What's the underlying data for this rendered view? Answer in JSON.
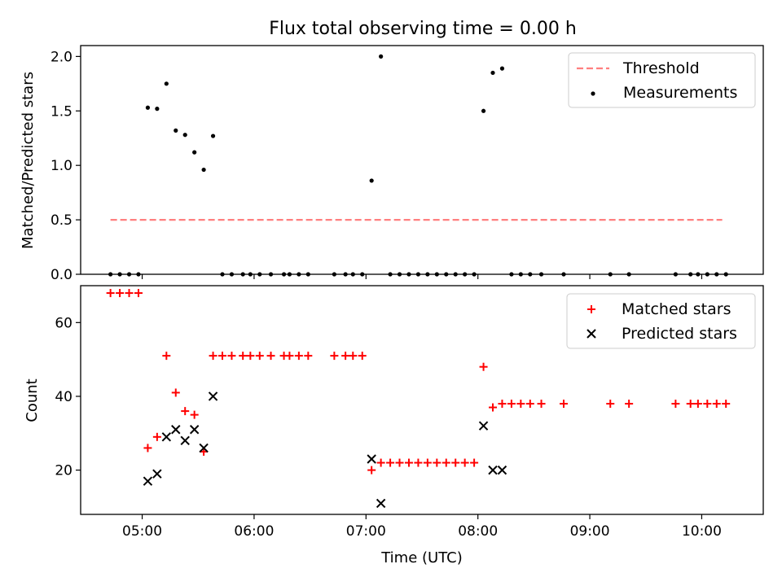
{
  "title": "Flux total observing time = 0.00 h",
  "colors": {
    "threshold": "#ff7f7f",
    "measurements": "#000000",
    "matched": "#ff0000",
    "predicted": "#000000"
  },
  "chart_data": [
    {
      "type": "scatter",
      "title": "Flux total observing time = 0.00 h",
      "ylabel": "Matched/Predicted stars",
      "xlabel": "",
      "xlim": [
        "04:27",
        "10:33"
      ],
      "ylim": [
        0,
        2.1
      ],
      "yticks": [
        0.0,
        0.5,
        1.0,
        1.5,
        2.0
      ],
      "ytick_labels": [
        "0.0",
        "0.5",
        "1.0",
        "1.5",
        "2.0"
      ],
      "legend_position": "top-right",
      "threshold": {
        "name": "Threshold",
        "y": 0.5,
        "x_start": "04:43",
        "x_end": "10:11",
        "style": "dashed"
      },
      "series": [
        {
          "name": "Measurements",
          "points": [
            [
              "04:43",
              0
            ],
            [
              "04:48",
              0
            ],
            [
              "04:53",
              0
            ],
            [
              "04:58",
              0
            ],
            [
              "05:03",
              1.53
            ],
            [
              "05:08",
              1.52
            ],
            [
              "05:13",
              1.75
            ],
            [
              "05:18",
              1.32
            ],
            [
              "05:23",
              1.28
            ],
            [
              "05:28",
              1.12
            ],
            [
              "05:33",
              0.96
            ],
            [
              "05:38",
              1.27
            ],
            [
              "05:43",
              0
            ],
            [
              "05:48",
              0
            ],
            [
              "05:54",
              0
            ],
            [
              "05:58",
              0
            ],
            [
              "06:03",
              0
            ],
            [
              "06:09",
              0
            ],
            [
              "06:16",
              0
            ],
            [
              "06:19",
              0
            ],
            [
              "06:24",
              0
            ],
            [
              "06:29",
              0
            ],
            [
              "06:43",
              0
            ],
            [
              "06:49",
              0
            ],
            [
              "06:53",
              0
            ],
            [
              "06:58",
              0
            ],
            [
              "07:03",
              0.86
            ],
            [
              "07:08",
              2.0
            ],
            [
              "07:13",
              0
            ],
            [
              "07:18",
              0
            ],
            [
              "07:23",
              0
            ],
            [
              "07:28",
              0
            ],
            [
              "07:33",
              0
            ],
            [
              "07:38",
              0
            ],
            [
              "07:43",
              0
            ],
            [
              "07:48",
              0
            ],
            [
              "07:53",
              0
            ],
            [
              "07:58",
              0
            ],
            [
              "08:03",
              1.5
            ],
            [
              "08:08",
              1.85
            ],
            [
              "08:13",
              1.89
            ],
            [
              "08:18",
              0
            ],
            [
              "08:23",
              0
            ],
            [
              "08:28",
              0
            ],
            [
              "08:34",
              0
            ],
            [
              "08:46",
              0
            ],
            [
              "09:11",
              0
            ],
            [
              "09:21",
              0
            ],
            [
              "09:46",
              0
            ],
            [
              "09:54",
              0
            ],
            [
              "09:58",
              0
            ],
            [
              "10:03",
              0
            ],
            [
              "10:08",
              0
            ],
            [
              "10:13",
              0
            ]
          ]
        }
      ]
    },
    {
      "type": "scatter",
      "title": "",
      "xlabel": "Time (UTC)",
      "ylabel": "Count",
      "xlim": [
        "04:27",
        "10:33"
      ],
      "ylim": [
        8,
        70
      ],
      "xticks": [
        "05:00",
        "06:00",
        "07:00",
        "08:00",
        "09:00",
        "10:00"
      ],
      "yticks": [
        20,
        40,
        60
      ],
      "ytick_labels": [
        "20",
        "40",
        "60"
      ],
      "legend_position": "top-right",
      "series": [
        {
          "name": "Matched stars",
          "marker": "plus",
          "points": [
            [
              "04:43",
              68
            ],
            [
              "04:48",
              68
            ],
            [
              "04:53",
              68
            ],
            [
              "04:58",
              68
            ],
            [
              "05:03",
              26
            ],
            [
              "05:08",
              29
            ],
            [
              "05:13",
              51
            ],
            [
              "05:18",
              41
            ],
            [
              "05:23",
              36
            ],
            [
              "05:28",
              35
            ],
            [
              "05:33",
              25
            ],
            [
              "05:38",
              51
            ],
            [
              "05:43",
              51
            ],
            [
              "05:48",
              51
            ],
            [
              "05:54",
              51
            ],
            [
              "05:58",
              51
            ],
            [
              "06:03",
              51
            ],
            [
              "06:09",
              51
            ],
            [
              "06:16",
              51
            ],
            [
              "06:19",
              51
            ],
            [
              "06:24",
              51
            ],
            [
              "06:29",
              51
            ],
            [
              "06:43",
              51
            ],
            [
              "06:49",
              51
            ],
            [
              "06:53",
              51
            ],
            [
              "06:58",
              51
            ],
            [
              "07:03",
              20
            ],
            [
              "07:08",
              22
            ],
            [
              "07:13",
              22
            ],
            [
              "07:18",
              22
            ],
            [
              "07:23",
              22
            ],
            [
              "07:28",
              22
            ],
            [
              "07:33",
              22
            ],
            [
              "07:38",
              22
            ],
            [
              "07:43",
              22
            ],
            [
              "07:48",
              22
            ],
            [
              "07:53",
              22
            ],
            [
              "07:58",
              22
            ],
            [
              "08:03",
              48
            ],
            [
              "08:08",
              37
            ],
            [
              "08:13",
              38
            ],
            [
              "08:18",
              38
            ],
            [
              "08:23",
              38
            ],
            [
              "08:28",
              38
            ],
            [
              "08:34",
              38
            ],
            [
              "08:46",
              38
            ],
            [
              "09:11",
              38
            ],
            [
              "09:21",
              38
            ],
            [
              "09:46",
              38
            ],
            [
              "09:54",
              38
            ],
            [
              "09:58",
              38
            ],
            [
              "10:03",
              38
            ],
            [
              "10:08",
              38
            ],
            [
              "10:13",
              38
            ]
          ]
        },
        {
          "name": "Predicted stars",
          "marker": "x",
          "points": [
            [
              "05:03",
              17
            ],
            [
              "05:08",
              19
            ],
            [
              "05:13",
              29
            ],
            [
              "05:18",
              31
            ],
            [
              "05:23",
              28
            ],
            [
              "05:28",
              31
            ],
            [
              "05:33",
              26
            ],
            [
              "05:38",
              40
            ],
            [
              "07:03",
              23
            ],
            [
              "07:08",
              11
            ],
            [
              "08:03",
              32
            ],
            [
              "08:08",
              20
            ],
            [
              "08:13",
              20
            ]
          ]
        }
      ]
    }
  ]
}
